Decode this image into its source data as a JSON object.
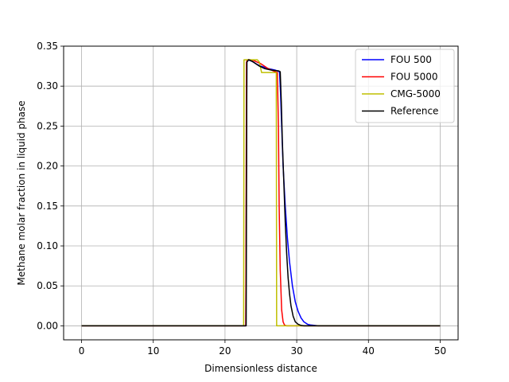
{
  "chart_data": {
    "type": "line",
    "title": "",
    "xlabel": "Dimensionless distance",
    "ylabel": "Methane molar fraction in liquid phase",
    "xlim": [
      -2.5,
      52.5
    ],
    "ylim": [
      -0.0175,
      0.35
    ],
    "xticks": [
      0,
      10,
      20,
      30,
      40,
      50
    ],
    "xtick_labels": [
      "0",
      "10",
      "20",
      "30",
      "40",
      "50"
    ],
    "yticks": [
      0.0,
      0.05,
      0.1,
      0.15,
      0.2,
      0.25,
      0.3,
      0.35
    ],
    "ytick_labels": [
      "0.00",
      "0.05",
      "0.10",
      "0.15",
      "0.20",
      "0.25",
      "0.30",
      "0.35"
    ],
    "grid": true,
    "legend_position": "top-right",
    "series": [
      {
        "name": "FOU 500",
        "color": "#0000ff",
        "x": [
          0,
          22.9,
          23.05,
          23.1,
          23.5,
          24,
          24.5,
          25,
          26,
          27,
          27.6,
          27.75,
          27.9,
          28.1,
          28.4,
          28.7,
          29.0,
          29.4,
          29.8,
          30.2,
          30.6,
          31.0,
          31.5,
          32,
          33,
          50
        ],
        "y": [
          0,
          0,
          0.33,
          0.333,
          0.332,
          0.33,
          0.327,
          0.325,
          0.322,
          0.32,
          0.318,
          0.29,
          0.25,
          0.2,
          0.15,
          0.11,
          0.08,
          0.05,
          0.03,
          0.018,
          0.01,
          0.005,
          0.002,
          0.001,
          0,
          0
        ]
      },
      {
        "name": "FOU 5000",
        "color": "#ff0000",
        "x": [
          0,
          22.9,
          23.0,
          23.1,
          23.5,
          24,
          24.5,
          25,
          26,
          27,
          27.3,
          27.45,
          27.55,
          27.7,
          27.9,
          28.1,
          28.3,
          28.6,
          50
        ],
        "y": [
          0,
          0,
          0.33,
          0.333,
          0.333,
          0.332,
          0.33,
          0.328,
          0.322,
          0.318,
          0.317,
          0.25,
          0.15,
          0.07,
          0.02,
          0.005,
          0.001,
          0,
          0
        ]
      },
      {
        "name": "CMG-5000",
        "color": "#bfbf00",
        "x": [
          0,
          22.6,
          22.65,
          24.2,
          24.5,
          24.8,
          25.1,
          26,
          27.15,
          27.2,
          50
        ],
        "y": [
          0,
          0,
          0.333,
          0.333,
          0.333,
          0.33,
          0.317,
          0.317,
          0.317,
          0,
          0
        ]
      },
      {
        "name": "Reference",
        "color": "#000000",
        "x": [
          0,
          22.95,
          23.05,
          23.3,
          23.8,
          24.3,
          24.8,
          25.5,
          26.5,
          27.5,
          27.7,
          27.85,
          28.0,
          28.2,
          28.4,
          28.6,
          28.8,
          29.0,
          29.2,
          29.5,
          29.8,
          30.2,
          30.6,
          31,
          50
        ],
        "y": [
          0,
          0,
          0.33,
          0.333,
          0.331,
          0.328,
          0.325,
          0.322,
          0.32,
          0.319,
          0.318,
          0.28,
          0.23,
          0.18,
          0.13,
          0.09,
          0.06,
          0.04,
          0.025,
          0.012,
          0.005,
          0.002,
          0.0005,
          0,
          0
        ]
      }
    ]
  }
}
